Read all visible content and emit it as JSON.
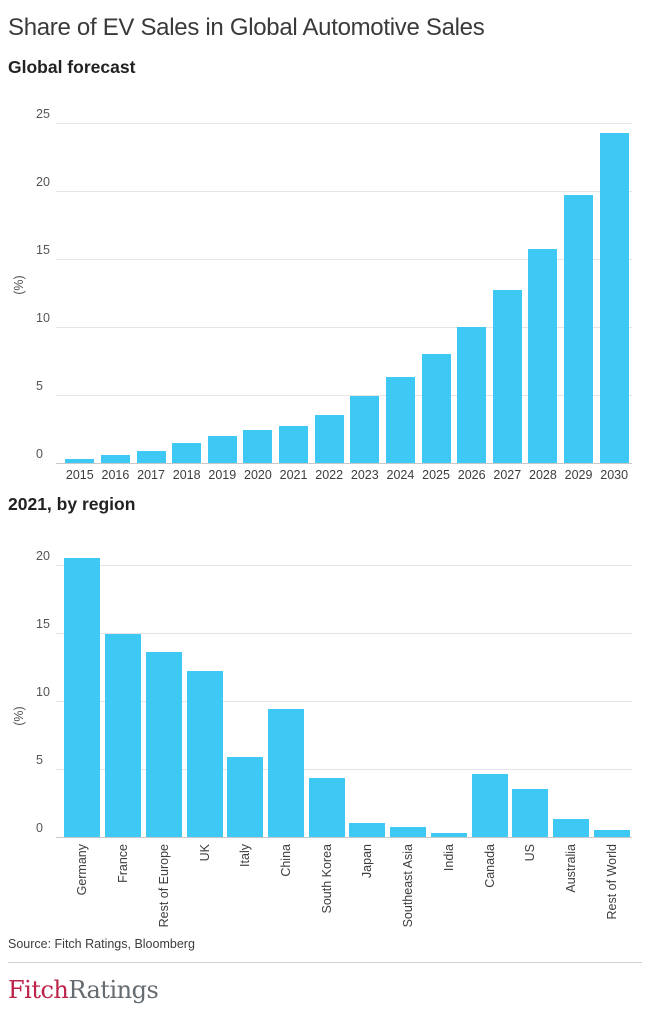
{
  "header": {
    "title": "Share of EV Sales in Global Automotive Sales"
  },
  "chart_data": [
    {
      "type": "bar",
      "title": "Global forecast",
      "ylabel": "(%)",
      "ylim": [
        0,
        25
      ],
      "yticks": [
        0,
        5,
        10,
        15,
        20,
        25
      ],
      "grid": true,
      "legend": "none",
      "bar_color": "#3ec8f4",
      "categories": [
        "2015",
        "2016",
        "2017",
        "2018",
        "2019",
        "2020",
        "2021",
        "2022",
        "2023",
        "2024",
        "2025",
        "2026",
        "2027",
        "2028",
        "2029",
        "2030"
      ],
      "values": [
        0.3,
        0.6,
        0.9,
        1.5,
        2.0,
        2.4,
        2.7,
        3.5,
        4.9,
        6.3,
        8.0,
        10.0,
        12.7,
        15.7,
        19.7,
        24.3
      ]
    },
    {
      "type": "bar",
      "title": "2021, by region",
      "ylabel": "(%)",
      "ylim": [
        0,
        21
      ],
      "yticks": [
        0,
        5,
        10,
        15,
        20
      ],
      "grid": true,
      "legend": "none",
      "bar_color": "#3ec8f4",
      "x_label_rotation": -90,
      "categories": [
        "Germany",
        "France",
        "Rest of Europe",
        "UK",
        "Italy",
        "China",
        "South Korea",
        "Japan",
        "Southeast Asia",
        "India",
        "Canada",
        "US",
        "Australia",
        "Rest of World"
      ],
      "values": [
        20.5,
        14.9,
        13.6,
        12.2,
        5.9,
        9.4,
        4.3,
        1.0,
        0.7,
        0.3,
        4.6,
        3.5,
        1.3,
        0.5
      ]
    }
  ],
  "footer": {
    "source": "Source: Fitch Ratings, Bloomberg",
    "logo_fitch": "Fitch",
    "logo_ratings": "Ratings",
    "logo_fitch_color": "#bd2248",
    "logo_ratings_color": "#646c71"
  },
  "colors": {
    "bar": "#3ec8f4",
    "gridline": "#e4e4e4",
    "axis_line": "#c9c9c9",
    "title_text": "#3a3a3a",
    "tick_text": "#545454"
  }
}
